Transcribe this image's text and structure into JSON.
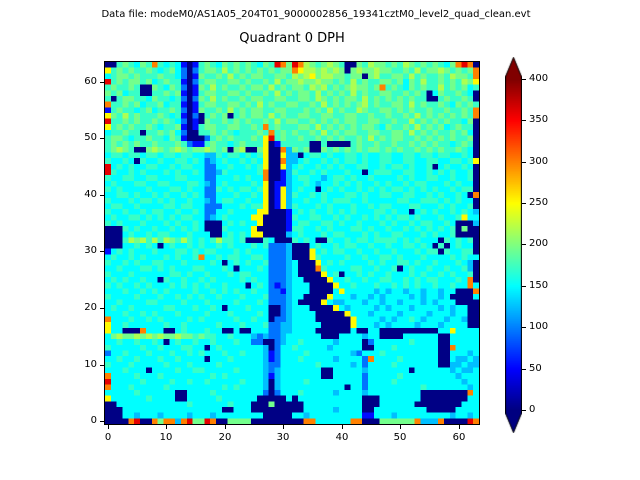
{
  "header": {
    "data_file_label": "Data file: modeM0/AS1A05_204T01_9000002856_19341cztM0_level2_quad_clean.evt"
  },
  "chart_data": {
    "type": "heatmap",
    "title": "Quadrant 0 DPH",
    "xlabel": "",
    "ylabel": "",
    "x_ticks": [
      0,
      10,
      20,
      30,
      40,
      50,
      60
    ],
    "y_ticks": [
      0,
      10,
      20,
      30,
      40,
      50,
      60
    ],
    "x_range": [
      -0.5,
      63.5
    ],
    "y_range": [
      -0.5,
      63.5
    ],
    "grid_size": [
      64,
      64
    ],
    "grid_on": false,
    "colormap": "jet",
    "colorbar": {
      "ticks": [
        0,
        50,
        100,
        150,
        200,
        250,
        300,
        350,
        400
      ],
      "vmin": 0,
      "vmax": 400,
      "extend": "both",
      "position": "right"
    },
    "value_levels": {
      "0": 2,
      "1": 55,
      "2": 95,
      "3": 125,
      "4": 150,
      "5": 172,
      "6": 195,
      "7": 218,
      "8": 252,
      "9": 300,
      "r": 360,
      "d": 400
    },
    "grid_rows_order": "top_to_bottom_y63_to_y0",
    "grid_rows": [
      "0056546595454101565465656546 5r96r97656765006576656576565 65469r90",
      "8565655654564202566575656565 656698776767606766766556575667656569",
      "4566565556554201655657565665 566576786776656606755665756556576659",
      "r565665645655102566556656556 575667667665657565566564657556565768",
      "5655650065465201657565565665 756566576756567665695654656557565645",
      "6564550055656101566556656556 575656657565657565566556565046556540",
      "5056655465545202657565565665 566556657656566575656565655005655650",
      "9556564556455101566556656575 655665565756565675655665756556546565",
      "1565545645565201655657565665 566555656575655765566565655655655659",
      "8657565556545102056560565665 756556655665566556556556575656565659",
      "r556565565654201065565656556 575665565656566556655655756565655460",
      "8565655654556101566556655659 565556657565656566546556575656456550",
      "4556550556564200556565455565 956565565756566556655665756565565640",
      "56654556554651000256565 55658r565565565656556575656655656 56565560",
      "5656565565556521156554565558 015555500500005655655655656565545650",
      "5676500676567656676560670068 009365600656565656656565565656556540",
      "4554554554554554433545545458 008330455454455454455445545545544540",
      "5445405445445545423454454548 009334544545455454455445544554455458",
      "r454544554454554422445445458 008345445454544554454554544504544540",
      "r544545444545445422354444459 001354454544454404555445544545454450",
      "5445544554445544422444545449 001345544345545445444454544554454450",
      "4544455445544455432454444548 011344543445454544545445455444545440",
      "5454444544455454422545455458 018345440454544545454554545454454550",
      "4455454454544545422444544548 018354454544455454455445544545445409",
      "5444545545454454432455445448 018344544545554454444455445554545440",
      "4554454444554554422244454558 018354445454445445455444554445454450",
      "5445445455445445422445444488 000145454454545444554544045454454543",
      "4544554545454554423454444880 000154455445454454545455454445445844",
      "5454445444545445400045454480 000145544554544544454544545544540003",
      "0005454454454545400054444800 000155445454445545445445454545450600",
      "0004544545544454440045454880 000345444545544454544554445454450000",
      "0005767575765754545755450005 400054540054454554555545454440545450",
      "0004454540454454544545444545 222300045445455445445445545405045440",
      "1454544454445545455444545444 222300084545544544544544454550544550",
      "4544545444545445944545544554 222300085444454454455454445444454544",
      "5445454455444544445404545445 222340008454544445454455454454445430",
      "4454445545454445544454044454 222340009544445544544504544544544530",
      "5444544444455454454445455444 222340000845044545445444545445454450",
      "4545445440544544545444454544 222344000084454454455445454554445490",
      "5454454544454545454454440454 212344400008445444544545454454454494",
      "4445445454544445445454544544 221344400004844444343443443443440009",
      "5444454445445454544544454445 222344000084443443434444343 44340000",
      "4454444554444544454444544454 222340000843344434434434443434440000",
      "4544544444554445445404445444 002344400008434444343444344443434400",
      "4445445454445444454445444454 002344440000084443444434444344434400",
      "9444544545444454544444544544 022344440000008444434344543444344300",
      "8445444444544544444544454445 223344444000008444343444434443444400",
      "8440009444004544454400400444 223344440000004004400000000004484444",
      "4676676767667665655445444323 223444444000444434400004444440044444",
      "4454454454045445445444544220 023445444443444402444444544440044444",
      "5444445445444554404544444443 024454444434444400444544444440094444",
      "2445444544454454544454454443 124444544444443244454444444440044434",
      "4454454445445444404445444443 124445444443444429444454444440043343",
      "5444544444544454444544444443 224444445444443424444544444440033433",
      "4445444044445445544444544443 234444444004444434444444044444434334",
      "9444454445444444445454444443 134444444004444424444454444444443444",
      "r444445444454454454444454443 034444544444444424444544444444444344",
      "9444544444544444444454544443 034444444444404424444444445444444434",
      "4444454444440044445444444442 024445444443444434444444440000000094",
      "8444444544440044444544444400 000404444444444400044444440000000044",
      "0044444444444454444445444000 600000444444444400044444400000000444",
      "0004444444444444444400444000 000000444443444400444444444000004444",
      "0004434443444434443444444440 000044344444444411444344444444434434",
      "00009r00969939r66r9006666000 000000994444449900066666693 3390000r9"
    ]
  }
}
